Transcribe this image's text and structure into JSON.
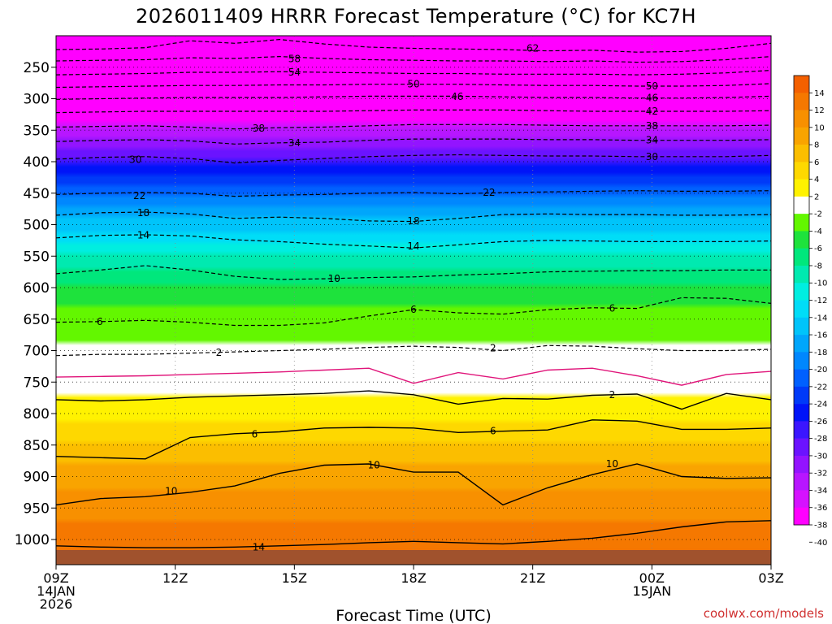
{
  "title": "2026011409 HRRR Forecast Temperature (°C) for KC7H",
  "credit": "coolwx.com/models",
  "chart_data": {
    "type": "heatmap",
    "title": "2026011409 HRRR Forecast Temperature (°C) for KC7H",
    "xlabel": "Forecast Time (UTC)",
    "ylabel": "",
    "x_hours": [
      0,
      3,
      6,
      9,
      12,
      15,
      18
    ],
    "x_tick_labels": [
      [
        "09Z",
        "14JAN",
        "2026"
      ],
      [
        "12Z"
      ],
      [
        "15Z"
      ],
      [
        "18Z"
      ],
      [
        "21Z"
      ],
      [
        "00Z",
        "15JAN"
      ],
      [
        "03Z"
      ]
    ],
    "xlim_hours": [
      0,
      18
    ],
    "y_ticks_hpa": [
      250,
      300,
      350,
      400,
      450,
      500,
      550,
      600,
      650,
      700,
      750,
      800,
      850,
      900,
      950,
      1000
    ],
    "ylim_hpa": [
      200,
      1040
    ],
    "surface_hpa": 1015,
    "temperature_profile_hpa": [
      200,
      250,
      300,
      350,
      400,
      450,
      500,
      550,
      600,
      650,
      700,
      750,
      800,
      850,
      900,
      950,
      1000,
      1015
    ],
    "temperature_profile_c": [
      -64,
      -56,
      -46,
      -36,
      -29,
      -23,
      -17,
      -12,
      -8,
      -5,
      -1,
      1,
      3,
      6,
      9,
      11,
      13,
      14
    ],
    "contours": [
      {
        "value": -62,
        "label": "62",
        "color": "#000000",
        "dashed": true,
        "p": [
          222,
          221,
          219,
          208,
          212,
          206,
          213,
          218,
          220,
          221,
          222,
          224,
          223,
          226,
          225,
          220,
          212
        ]
      },
      {
        "value": -58,
        "label": "58",
        "color": "#000000",
        "dashed": true,
        "p": [
          240,
          239,
          238,
          235,
          236,
          233,
          236,
          238,
          239,
          240,
          240,
          241,
          240,
          242,
          241,
          238,
          233
        ]
      },
      {
        "value": -54,
        "label": "54",
        "color": "#000000",
        "dashed": true,
        "p": [
          262,
          261,
          260,
          258,
          258,
          257,
          258,
          259,
          260,
          260,
          261,
          261,
          261,
          262,
          261,
          259,
          255
        ]
      },
      {
        "value": -50,
        "label": "50",
        "color": "#000000",
        "dashed": true,
        "p": [
          282,
          281,
          280,
          279,
          279,
          278,
          278,
          277,
          277,
          277,
          278,
          279,
          279,
          280,
          280,
          279,
          276
        ]
      },
      {
        "value": -46,
        "label": "46",
        "color": "#000000",
        "dashed": true,
        "p": [
          301,
          300,
          299,
          298,
          298,
          298,
          297,
          296,
          296,
          296,
          297,
          298,
          298,
          299,
          299,
          298,
          296
        ]
      },
      {
        "value": -42,
        "label": "42",
        "color": "#000000",
        "dashed": true,
        "p": [
          322,
          321,
          320,
          320,
          320,
          320,
          320,
          319,
          318,
          318,
          318,
          319,
          320,
          320,
          320,
          320,
          319
        ]
      },
      {
        "value": -38,
        "label": "38",
        "color": "#000000",
        "dashed": true,
        "p": [
          345,
          344,
          343,
          345,
          348,
          346,
          345,
          343,
          341,
          341,
          341,
          342,
          343,
          343,
          343,
          343,
          342
        ]
      },
      {
        "value": -34,
        "label": "34",
        "color": "#000000",
        "dashed": true,
        "p": [
          368,
          366,
          365,
          367,
          372,
          370,
          369,
          366,
          364,
          364,
          364,
          365,
          365,
          366,
          366,
          366,
          365
        ]
      },
      {
        "value": -30,
        "label": "30",
        "color": "#000000",
        "dashed": true,
        "p": [
          396,
          393,
          392,
          395,
          402,
          398,
          395,
          392,
          390,
          389,
          390,
          391,
          391,
          392,
          392,
          392,
          390
        ]
      },
      {
        "value": -22,
        "label": "22",
        "color": "#000000",
        "dashed": true,
        "p": [
          452,
          450,
          449,
          450,
          455,
          453,
          452,
          450,
          449,
          451,
          449,
          448,
          447,
          446,
          447,
          447,
          446
        ]
      },
      {
        "value": -18,
        "label": "18",
        "color": "#000000",
        "dashed": true,
        "p": [
          485,
          481,
          480,
          483,
          490,
          488,
          490,
          494,
          495,
          490,
          484,
          483,
          484,
          484,
          485,
          485,
          484
        ]
      },
      {
        "value": -14,
        "label": "14",
        "color": "#000000",
        "dashed": true,
        "p": [
          521,
          517,
          516,
          518,
          524,
          527,
          531,
          534,
          537,
          532,
          527,
          525,
          526,
          527,
          527,
          527,
          526
        ]
      },
      {
        "value": -10,
        "label": "10",
        "color": "#000000",
        "dashed": true,
        "p": [
          578,
          572,
          565,
          572,
          582,
          587,
          586,
          584,
          583,
          580,
          578,
          575,
          574,
          573,
          573,
          572,
          572
        ]
      },
      {
        "value": -6,
        "label": "6",
        "color": "#000000",
        "dashed": true,
        "p": [
          655,
          654,
          652,
          655,
          660,
          660,
          656,
          645,
          635,
          640,
          642,
          635,
          632,
          633,
          616,
          617,
          625
        ]
      },
      {
        "value": -2,
        "label": "2",
        "color": "#000000",
        "dashed": true,
        "p": [
          708,
          706,
          706,
          704,
          702,
          700,
          698,
          695,
          693,
          695,
          700,
          692,
          693,
          697,
          700,
          700,
          698
        ]
      },
      {
        "value": 0,
        "label": "",
        "color": "#e0157a",
        "dashed": false,
        "p": [
          742,
          741,
          740,
          738,
          736,
          734,
          731,
          728,
          752,
          735,
          745,
          731,
          728,
          740,
          755,
          738,
          733
        ]
      },
      {
        "value": 2,
        "label": "2",
        "color": "#000000",
        "dashed": false,
        "p": [
          778,
          780,
          778,
          774,
          772,
          770,
          768,
          764,
          770,
          785,
          776,
          777,
          771,
          769,
          793,
          768,
          778
        ]
      },
      {
        "value": 6,
        "label": "6",
        "color": "#000000",
        "dashed": false,
        "p": [
          868,
          870,
          872,
          838,
          832,
          829,
          823,
          822,
          823,
          830,
          828,
          826,
          810,
          812,
          825,
          825,
          823
        ]
      },
      {
        "value": 10,
        "label": "10",
        "color": "#000000",
        "dashed": false,
        "p": [
          945,
          935,
          932,
          925,
          915,
          895,
          882,
          880,
          893,
          893,
          945,
          918,
          897,
          880,
          900,
          903,
          902
        ]
      },
      {
        "value": 14,
        "label": "14",
        "color": "#000000",
        "dashed": false,
        "p": [
          1010,
          1012,
          1013,
          1013,
          1012,
          1010,
          1008,
          1005,
          1003,
          1005,
          1007,
          1003,
          998,
          990,
          980,
          972,
          970
        ]
      }
    ],
    "contour_labels": [
      {
        "text": "62",
        "hour": 12.0,
        "hpa": 220
      },
      {
        "text": "58",
        "hour": 6.0,
        "hpa": 237
      },
      {
        "text": "54",
        "hour": 6.0,
        "hpa": 258
      },
      {
        "text": "50",
        "hour": 9.0,
        "hpa": 277
      },
      {
        "text": "50",
        "hour": 15.0,
        "hpa": 280
      },
      {
        "text": "46",
        "hour": 10.1,
        "hpa": 297
      },
      {
        "text": "46",
        "hour": 15.0,
        "hpa": 299
      },
      {
        "text": "42",
        "hour": 15.0,
        "hpa": 320
      },
      {
        "text": "38",
        "hour": 5.1,
        "hpa": 347
      },
      {
        "text": "38",
        "hour": 15.0,
        "hpa": 343
      },
      {
        "text": "34",
        "hour": 6.0,
        "hpa": 370
      },
      {
        "text": "34",
        "hour": 15.0,
        "hpa": 366
      },
      {
        "text": "30",
        "hour": 2.0,
        "hpa": 397
      },
      {
        "text": "30",
        "hour": 15.0,
        "hpa": 392
      },
      {
        "text": "22",
        "hour": 2.1,
        "hpa": 454
      },
      {
        "text": "22",
        "hour": 10.9,
        "hpa": 449
      },
      {
        "text": "18",
        "hour": 2.2,
        "hpa": 481
      },
      {
        "text": "18",
        "hour": 9.0,
        "hpa": 494
      },
      {
        "text": "14",
        "hour": 2.2,
        "hpa": 517
      },
      {
        "text": "14",
        "hour": 9.0,
        "hpa": 534
      },
      {
        "text": "10",
        "hour": 7.0,
        "hpa": 586
      },
      {
        "text": "6",
        "hour": 1.1,
        "hpa": 654
      },
      {
        "text": "6",
        "hour": 9.0,
        "hpa": 635
      },
      {
        "text": "6",
        "hour": 14.0,
        "hpa": 633
      },
      {
        "text": "2",
        "hour": 4.1,
        "hpa": 703
      },
      {
        "text": "2",
        "hour": 11.0,
        "hpa": 696
      },
      {
        "text": "2",
        "hour": 14.0,
        "hpa": 770
      },
      {
        "text": "6",
        "hour": 5.0,
        "hpa": 833
      },
      {
        "text": "6",
        "hour": 11.0,
        "hpa": 828
      },
      {
        "text": "10",
        "hour": 2.9,
        "hpa": 923
      },
      {
        "text": "10",
        "hour": 8.0,
        "hpa": 882
      },
      {
        "text": "10",
        "hour": 14.0,
        "hpa": 880
      },
      {
        "text": "14",
        "hour": 5.1,
        "hpa": 1012
      }
    ],
    "colorbar": {
      "tick_labels": [
        "14",
        "12",
        "10",
        "8",
        "6",
        "4",
        "2",
        "-2",
        "-4",
        "-6",
        "-8",
        "-10",
        "-12",
        "-14",
        "-16",
        "-18",
        "-20",
        "-22",
        "-24",
        "-26",
        "-28",
        "-30",
        "-32",
        "-34",
        "-36",
        "-38",
        "-40"
      ],
      "levels": [
        16,
        14,
        12,
        10,
        8,
        6,
        4,
        2,
        -2,
        -4,
        -6,
        -8,
        -10,
        -12,
        -14,
        -16,
        -18,
        -20,
        -22,
        -24,
        -26,
        -28,
        -30,
        -32,
        -34,
        -36,
        -38,
        -40,
        -42
      ],
      "colors": [
        "#f46000",
        "#f57800",
        "#f89000",
        "#f9a400",
        "#fbbe00",
        "#fed800",
        "#fff200",
        "#ffffff",
        "#63f700",
        "#1ee23c",
        "#00e77c",
        "#00eab0",
        "#00eee0",
        "#00ddf7",
        "#00c4fa",
        "#00a6fb",
        "#0087fe",
        "#0060ff",
        "#003af8",
        "#0014f8",
        "#3b16ff",
        "#6b13ff",
        "#9314ff",
        "#b716ff",
        "#d512ff",
        "#ff00ff"
      ]
    },
    "surface_color": "#a0522d",
    "fill_colors_cold_to_warm": {
      "-64": "#ff00ff",
      "-40": "#ff00ff",
      "-38": "#d512ff",
      "-36": "#b716ff",
      "-34": "#9314ff",
      "-32": "#6b13ff",
      "-30": "#3b16ff",
      "-28": "#0014f8",
      "-26": "#003af8",
      "-24": "#0060ff",
      "-22": "#0087fe",
      "-20": "#00a6fb",
      "-18": "#00c4fa",
      "-16": "#00ddf7",
      "-14": "#00eee0",
      "-12": "#00eab0",
      "-10": "#00e77c",
      "-8": "#1ee23c",
      "-6": "#63f700",
      "-2": "#ffffff",
      "2": "#fff200",
      "4": "#fed800",
      "6": "#fbbe00",
      "8": "#f9a400",
      "10": "#f89000",
      "12": "#f57800",
      "14": "#f46000"
    }
  }
}
